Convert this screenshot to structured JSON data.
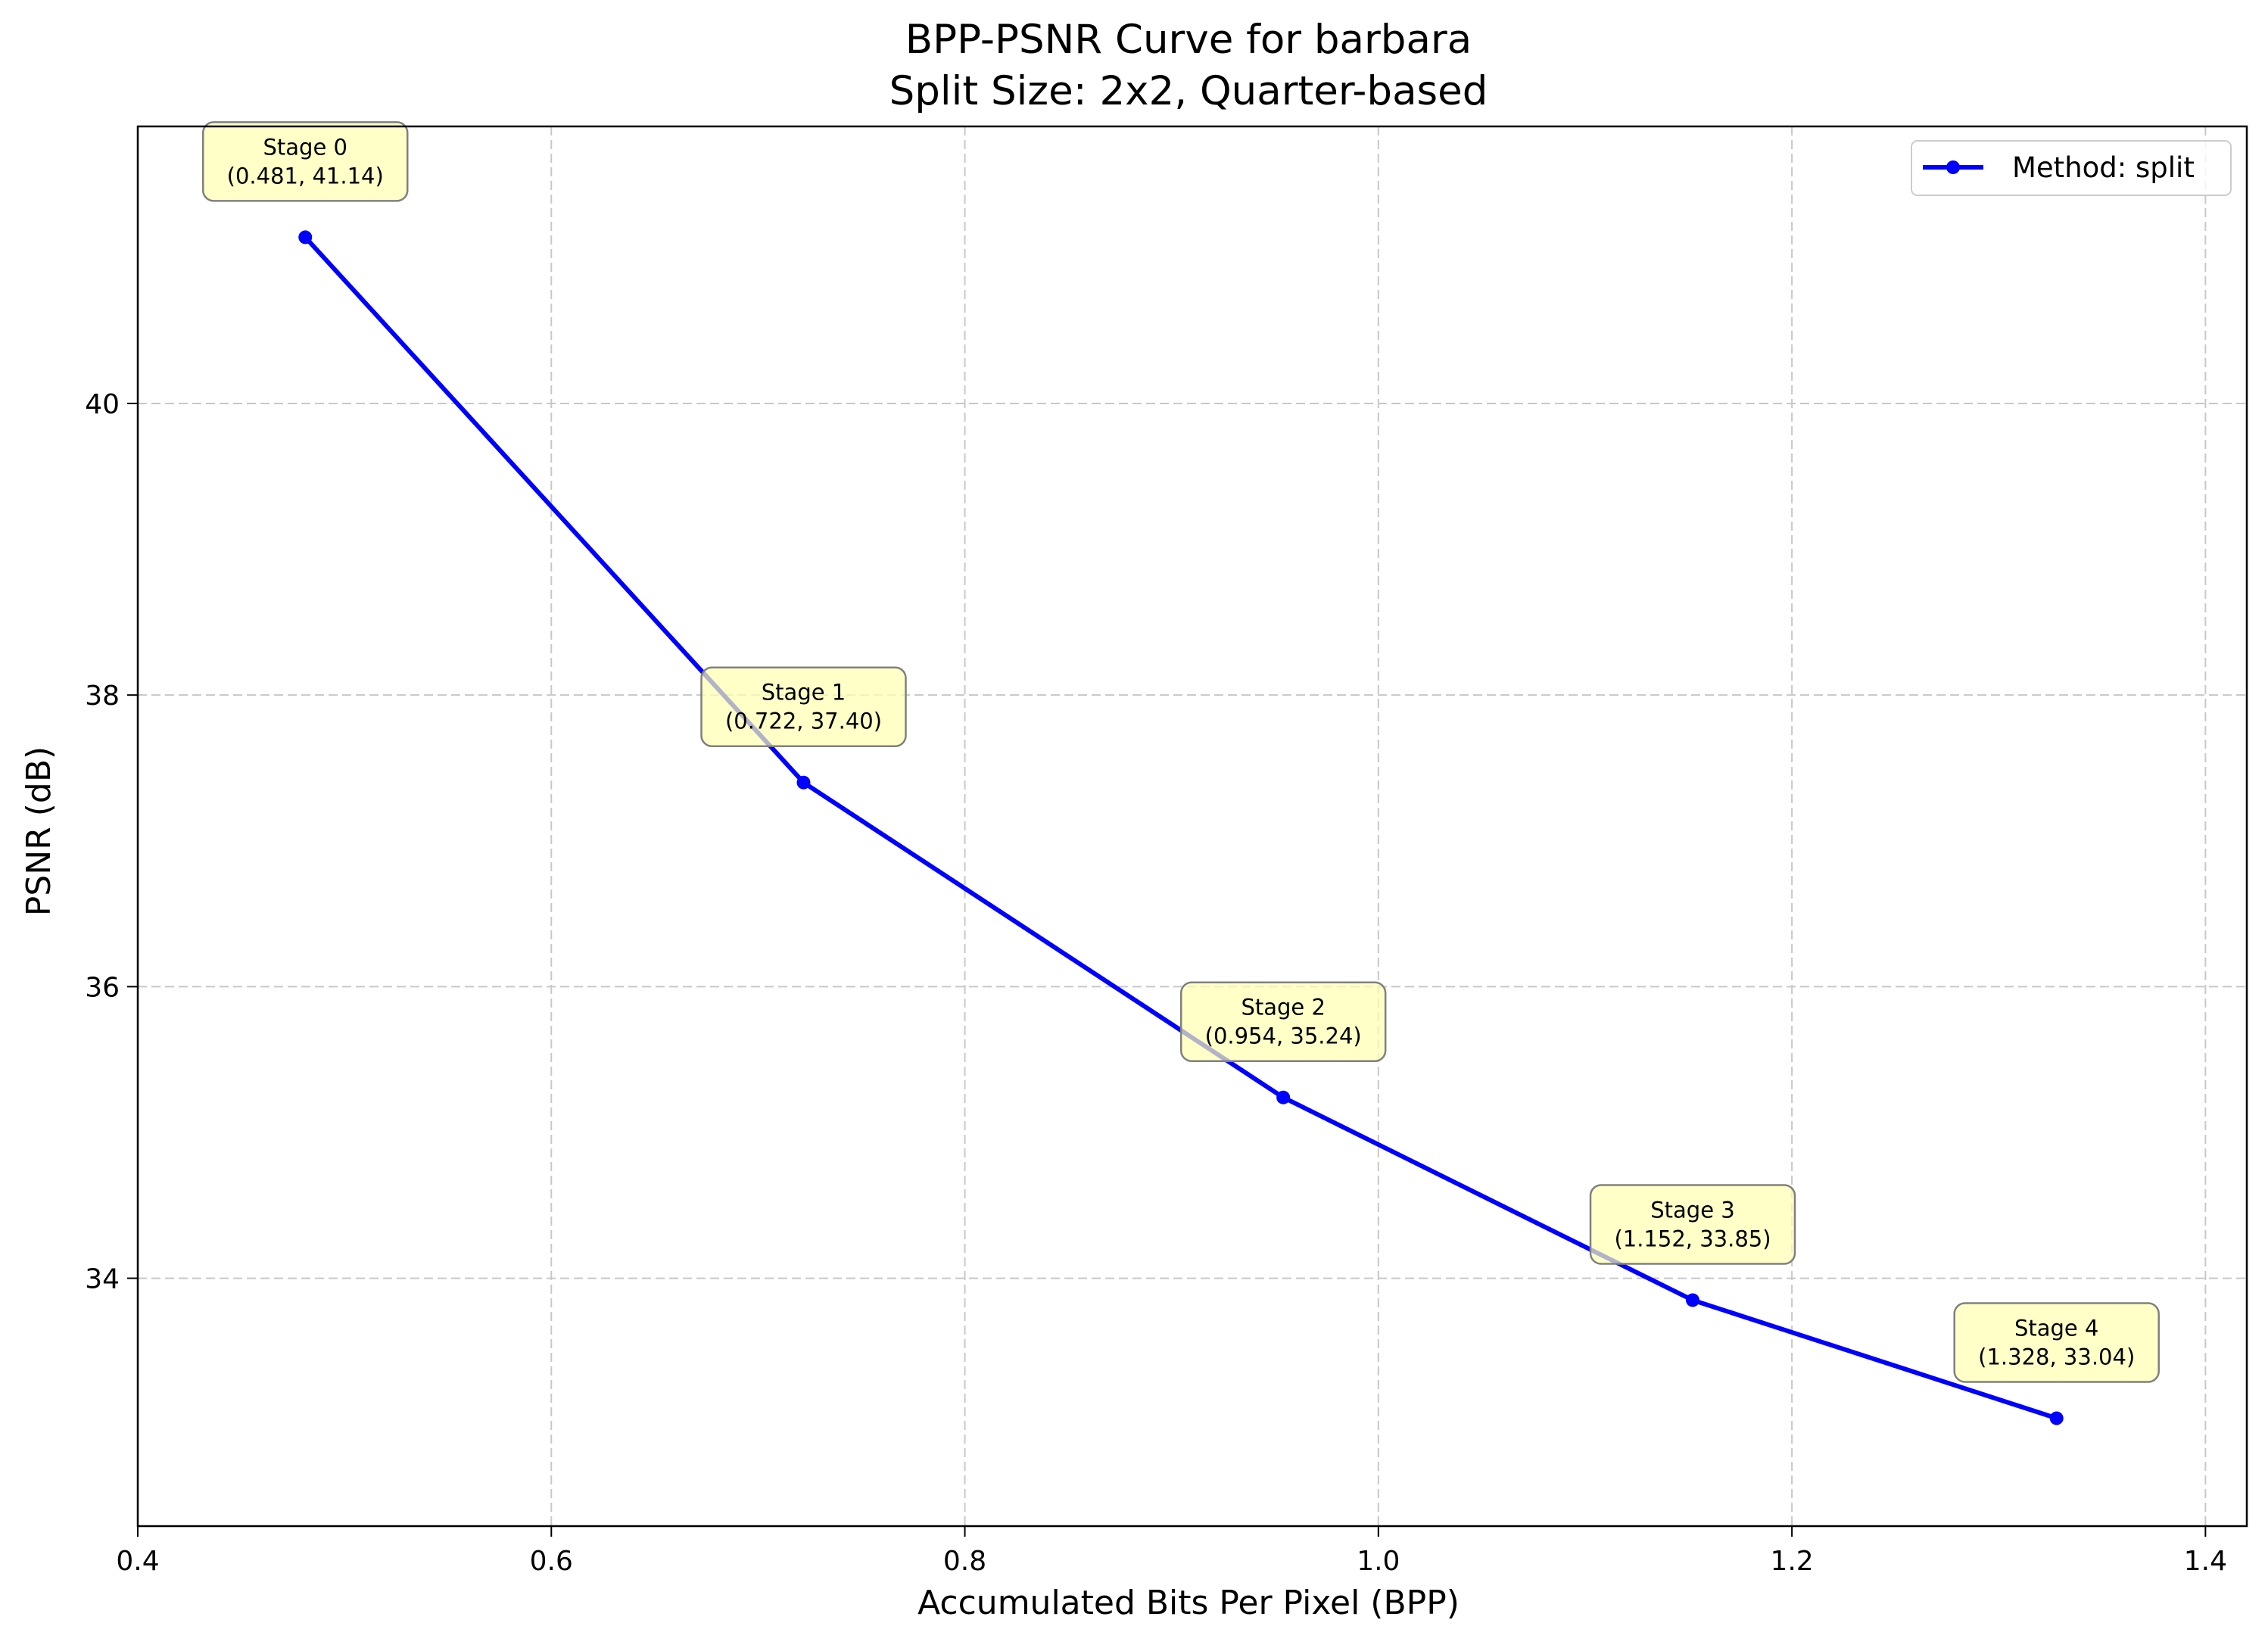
{
  "chart_data": {
    "type": "line",
    "title": "BPP-PSNR Curve for barbara",
    "subtitle": "Split Size: 2x2, Quarter-based",
    "xlabel": "Accumulated Bits Per Pixel (BPP)",
    "ylabel": "PSNR (dB)",
    "xlim": [
      0.4,
      1.42
    ],
    "ylim": [
      32.3,
      41.9
    ],
    "xticks": [
      0.4,
      0.6,
      0.8,
      1.0,
      1.2,
      1.4
    ],
    "xtick_labels": [
      "0.4",
      "0.6",
      "0.8",
      "1.0",
      "1.2",
      "1.4"
    ],
    "yticks": [
      34,
      36,
      38,
      40
    ],
    "ytick_labels": [
      "34",
      "36",
      "38",
      "40"
    ],
    "grid": true,
    "legend_position": "top-right",
    "series": [
      {
        "name": "Method: split",
        "color": "#0000ff",
        "marker": "circle",
        "x": [
          0.481,
          0.722,
          0.954,
          1.152,
          1.328
        ],
        "y": [
          41.14,
          37.4,
          35.24,
          33.85,
          33.04
        ]
      }
    ],
    "annotations": [
      {
        "line1": "Stage 0",
        "line2": "(0.481, 41.14)"
      },
      {
        "line1": "Stage 1",
        "line2": "(0.722, 37.40)"
      },
      {
        "line1": "Stage 2",
        "line2": "(0.954, 35.24)"
      },
      {
        "line1": "Stage 3",
        "line2": "(1.152, 33.85)"
      },
      {
        "line1": "Stage 4",
        "line2": "(1.328, 33.04)"
      }
    ],
    "annotation_box_color": "#ffffb0"
  }
}
